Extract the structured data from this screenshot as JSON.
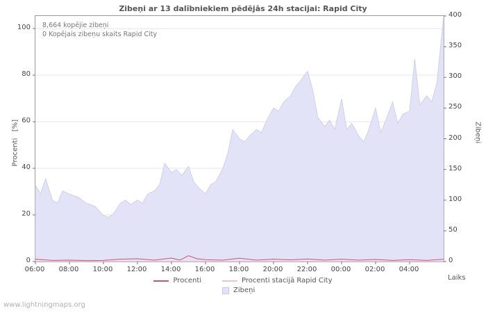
{
  "watermark": "www.lightningmaps.org",
  "chart_data": {
    "type": "area",
    "title": "Zibeņi ar 13 dalībniekiem pēdējās 24h stacijai: Rapid City",
    "xlabel": "Laiks",
    "ylabel_left": "Procenti   [%]",
    "ylabel_right": "Zibeņi",
    "annotations": [
      "8,664 kopējie zibeņi",
      "0 Kopējais zibeņu skaits Rapid City"
    ],
    "x_range": [
      0,
      24
    ],
    "y_left_range": [
      0,
      100
    ],
    "y_right_range": [
      0,
      400
    ],
    "x_ticks": [
      "06:00",
      "08:00",
      "10:00",
      "12:00",
      "14:00",
      "16:00",
      "18:00",
      "20:00",
      "22:00",
      "00:00",
      "02:00",
      "04:00"
    ],
    "y_left_ticks": [
      0,
      20,
      40,
      60,
      80,
      100
    ],
    "y_right_ticks": [
      0,
      50,
      100,
      150,
      200,
      250,
      300,
      350,
      400
    ],
    "grid": true,
    "legend_position": "bottom",
    "series": [
      {
        "name": "Zibeņi",
        "type": "area",
        "axis": "right",
        "color": "#e3e3f7",
        "edge_color": "#cfcfee",
        "x": [
          0,
          0.3,
          0.6,
          1,
          1.3,
          1.6,
          2,
          2.5,
          3,
          3.5,
          4,
          4.3,
          4.6,
          5,
          5.3,
          5.6,
          6,
          6.3,
          6.6,
          7,
          7.3,
          7.6,
          8,
          8.3,
          8.6,
          9,
          9.3,
          9.6,
          10,
          10.3,
          10.6,
          11,
          11.3,
          11.6,
          12,
          12.3,
          12.6,
          13,
          13.3,
          13.6,
          14,
          14.3,
          14.6,
          15,
          15.3,
          15.6,
          16,
          16.3,
          16.6,
          17,
          17.3,
          17.6,
          18,
          18.3,
          18.6,
          19,
          19.3,
          19.6,
          20,
          20.3,
          20.6,
          21,
          21.3,
          21.6,
          22,
          22.3,
          22.6,
          23,
          23.3,
          23.6,
          24
        ],
        "values": [
          125,
          110,
          135,
          100,
          95,
          115,
          110,
          105,
          95,
          90,
          75,
          72,
          78,
          95,
          100,
          93,
          100,
          95,
          110,
          115,
          125,
          160,
          145,
          150,
          140,
          155,
          130,
          120,
          110,
          125,
          130,
          150,
          175,
          215,
          200,
          195,
          205,
          215,
          210,
          230,
          250,
          245,
          260,
          270,
          285,
          295,
          310,
          280,
          235,
          220,
          230,
          215,
          265,
          215,
          225,
          205,
          195,
          215,
          250,
          210,
          230,
          260,
          225,
          240,
          245,
          330,
          255,
          270,
          260,
          290,
          400
        ]
      },
      {
        "name": "Procenti",
        "type": "line",
        "axis": "left",
        "color": "#cc5566",
        "x": [
          0,
          1,
          2,
          3,
          4,
          5,
          6,
          7,
          8,
          8.5,
          9,
          9.5,
          10,
          11,
          12,
          13,
          14,
          15,
          16,
          17,
          18,
          19,
          20,
          21,
          22,
          23,
          24
        ],
        "values": [
          1,
          0.5,
          0.6,
          0.4,
          0.5,
          1,
          1.2,
          0.6,
          1.5,
          0.6,
          2.5,
          1.2,
          0.8,
          0.6,
          1.4,
          0.6,
          1,
          0.7,
          1.1,
          0.6,
          1,
          0.6,
          0.9,
          0.5,
          0.8,
          0.5,
          1
        ]
      },
      {
        "name": "Procenti stacijā Rapid City",
        "type": "line",
        "axis": "left",
        "color": "#f4c2ce",
        "x": [
          0,
          24
        ],
        "values": [
          0,
          0
        ]
      }
    ]
  }
}
